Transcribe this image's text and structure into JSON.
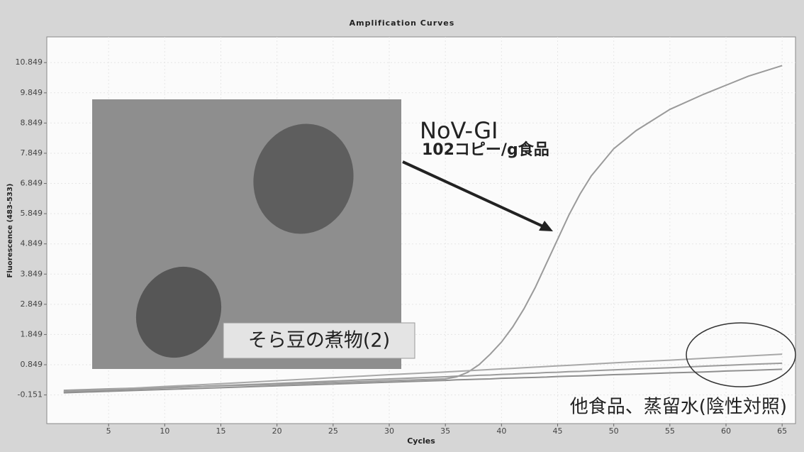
{
  "chart_data": {
    "type": "line",
    "title": "Amplification Curves",
    "x_label": "Cycles",
    "y_label": "Fluorescence (483-533)",
    "x": [
      1,
      5,
      10,
      15,
      20,
      25,
      30,
      35,
      36,
      37,
      38,
      39,
      40,
      41,
      42,
      43,
      44,
      45,
      46,
      47,
      48,
      50,
      52,
      55,
      58,
      60,
      62,
      65
    ],
    "series": [
      {
        "color": "#9a9a9a",
        "values": [
          0.0,
          0.05,
          0.1,
          0.15,
          0.2,
          0.26,
          0.32,
          0.38,
          0.45,
          0.6,
          0.85,
          1.2,
          1.6,
          2.1,
          2.7,
          3.4,
          4.2,
          5.0,
          5.8,
          6.5,
          7.1,
          8.0,
          8.6,
          9.3,
          9.8,
          10.1,
          10.4,
          10.75
        ]
      },
      {
        "color": "#a8a8a8",
        "values": [
          -0.05,
          0.03,
          0.13,
          0.22,
          0.32,
          0.42,
          0.52,
          0.61,
          0.63,
          0.65,
          0.67,
          0.69,
          0.71,
          0.73,
          0.75,
          0.77,
          0.79,
          0.81,
          0.83,
          0.85,
          0.87,
          0.91,
          0.95,
          1.0,
          1.06,
          1.1,
          1.14,
          1.2
        ]
      },
      {
        "color": "#9c9c9c",
        "values": [
          -0.05,
          0.01,
          0.08,
          0.16,
          0.23,
          0.31,
          0.38,
          0.45,
          0.47,
          0.48,
          0.5,
          0.51,
          0.53,
          0.54,
          0.56,
          0.57,
          0.59,
          0.6,
          0.62,
          0.63,
          0.65,
          0.68,
          0.71,
          0.75,
          0.8,
          0.83,
          0.86,
          0.9
        ]
      },
      {
        "color": "#8f8f8f",
        "values": [
          -0.08,
          -0.03,
          0.03,
          0.09,
          0.15,
          0.21,
          0.27,
          0.33,
          0.35,
          0.36,
          0.37,
          0.38,
          0.4,
          0.41,
          0.42,
          0.43,
          0.44,
          0.46,
          0.47,
          0.48,
          0.49,
          0.52,
          0.54,
          0.58,
          0.61,
          0.64,
          0.66,
          0.7
        ]
      }
    ],
    "xlim": [
      0,
      66
    ],
    "ylim": [
      -1.1,
      11.7
    ],
    "xticks": [
      5,
      10,
      15,
      20,
      25,
      30,
      35,
      40,
      45,
      50,
      55,
      60,
      65
    ],
    "yticks": [
      -0.151,
      0.849,
      1.849,
      2.849,
      3.849,
      4.849,
      5.849,
      6.849,
      7.849,
      8.849,
      9.849,
      10.849
    ],
    "grid": true,
    "annotations": {
      "target": "NoV-GI",
      "amount": "102コピー/g食品",
      "sample": "そら豆の煮物(2)",
      "negative": "他食品、蒸留水(陰性対照)"
    }
  }
}
